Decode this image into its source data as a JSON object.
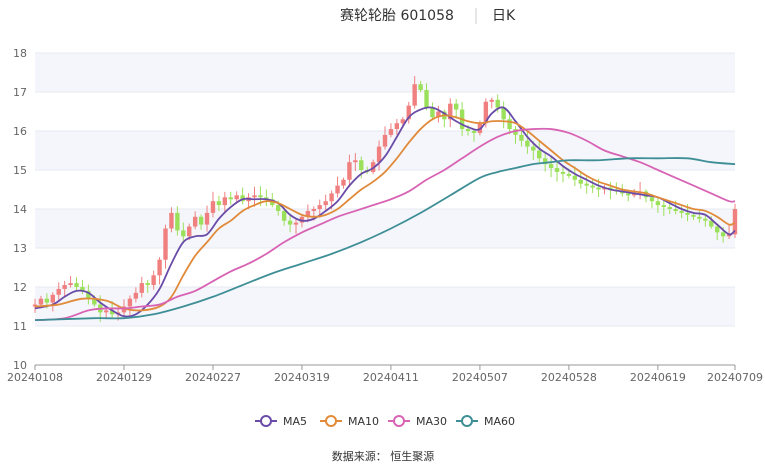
{
  "header": {
    "title": "赛轮轮胎 601058",
    "period": "日K"
  },
  "footer": {
    "source": "数据来源：  恒生聚源"
  },
  "chart_data": {
    "type": "candlestick",
    "xlabel": "",
    "ylabel": "",
    "ylim": [
      10,
      18
    ],
    "yticks": [
      10,
      11,
      12,
      13,
      14,
      15,
      16,
      17,
      18
    ],
    "grid": true,
    "legend_position": "bottom",
    "colors": {
      "up": "#f08080",
      "down": "#9be05a",
      "MA5": "#6a4ca8",
      "MA10": "#e08a3a",
      "MA30": "#d863b4",
      "MA60": "#3e8e96"
    },
    "xticks": [
      {
        "i": 0,
        "label": "20240108"
      },
      {
        "i": 15,
        "label": "20240129"
      },
      {
        "i": 30,
        "label": "20240227"
      },
      {
        "i": 45,
        "label": "20240319"
      },
      {
        "i": 60,
        "label": "20240411"
      },
      {
        "i": 75,
        "label": "20240507"
      },
      {
        "i": 90,
        "label": "20240528"
      },
      {
        "i": 105,
        "label": "20240619"
      },
      {
        "i": 118,
        "label": "20240709"
      }
    ],
    "close_path": [
      [
        0,
        11.55
      ],
      [
        1,
        11.7
      ],
      [
        2,
        11.6
      ],
      [
        3,
        11.8
      ],
      [
        4,
        11.95
      ],
      [
        5,
        12.05
      ],
      [
        6,
        12.1
      ],
      [
        7,
        12.0
      ],
      [
        8,
        11.9
      ],
      [
        9,
        11.7
      ],
      [
        10,
        11.55
      ],
      [
        11,
        11.35
      ],
      [
        12,
        11.4
      ],
      [
        13,
        11.3
      ],
      [
        14,
        11.35
      ],
      [
        15,
        11.5
      ],
      [
        16,
        11.7
      ],
      [
        17,
        11.85
      ],
      [
        18,
        12.1
      ],
      [
        19,
        12.05
      ],
      [
        20,
        12.3
      ],
      [
        21,
        12.7
      ],
      [
        22,
        13.5
      ],
      [
        23,
        13.9
      ],
      [
        24,
        13.45
      ],
      [
        25,
        13.3
      ],
      [
        26,
        13.55
      ],
      [
        27,
        13.8
      ],
      [
        28,
        13.6
      ],
      [
        29,
        13.9
      ],
      [
        30,
        14.2
      ],
      [
        31,
        14.1
      ],
      [
        32,
        14.3
      ],
      [
        33,
        14.25
      ],
      [
        34,
        14.35
      ],
      [
        35,
        14.2
      ],
      [
        36,
        14.3
      ],
      [
        37,
        14.35
      ],
      [
        38,
        14.3
      ],
      [
        39,
        14.25
      ],
      [
        40,
        14.1
      ],
      [
        41,
        13.95
      ],
      [
        42,
        13.7
      ],
      [
        43,
        13.6
      ],
      [
        44,
        13.65
      ],
      [
        45,
        13.8
      ],
      [
        46,
        13.95
      ],
      [
        47,
        14.0
      ],
      [
        48,
        14.1
      ],
      [
        49,
        14.2
      ],
      [
        50,
        14.4
      ],
      [
        51,
        14.6
      ],
      [
        52,
        14.75
      ],
      [
        53,
        15.2
      ],
      [
        54,
        15.25
      ],
      [
        55,
        15.0
      ],
      [
        56,
        14.95
      ],
      [
        57,
        15.2
      ],
      [
        58,
        15.6
      ],
      [
        59,
        15.9
      ],
      [
        60,
        16.05
      ],
      [
        61,
        16.2
      ],
      [
        62,
        16.3
      ],
      [
        63,
        16.65
      ],
      [
        64,
        17.2
      ],
      [
        65,
        17.05
      ],
      [
        66,
        16.6
      ],
      [
        67,
        16.35
      ],
      [
        68,
        16.5
      ],
      [
        69,
        16.3
      ],
      [
        70,
        16.7
      ],
      [
        71,
        16.55
      ],
      [
        72,
        16.05
      ],
      [
        73,
        16.0
      ],
      [
        74,
        15.95
      ],
      [
        75,
        16.2
      ],
      [
        76,
        16.75
      ],
      [
        77,
        16.8
      ],
      [
        78,
        16.6
      ],
      [
        79,
        16.3
      ],
      [
        80,
        16.05
      ],
      [
        81,
        15.9
      ],
      [
        82,
        15.75
      ],
      [
        83,
        15.6
      ],
      [
        84,
        15.5
      ],
      [
        85,
        15.3
      ],
      [
        86,
        15.15
      ],
      [
        87,
        15.05
      ],
      [
        88,
        14.95
      ],
      [
        89,
        14.9
      ],
      [
        90,
        14.85
      ],
      [
        91,
        14.75
      ],
      [
        92,
        14.65
      ],
      [
        93,
        14.6
      ],
      [
        94,
        14.55
      ],
      [
        95,
        14.5
      ],
      [
        96,
        14.55
      ],
      [
        97,
        14.5
      ],
      [
        98,
        14.45
      ],
      [
        99,
        14.4
      ],
      [
        100,
        14.35
      ],
      [
        101,
        14.4
      ],
      [
        102,
        14.45
      ],
      [
        103,
        14.3
      ],
      [
        104,
        14.2
      ],
      [
        105,
        14.1
      ],
      [
        106,
        14.05
      ],
      [
        107,
        14.0
      ],
      [
        108,
        13.95
      ],
      [
        109,
        13.9
      ],
      [
        110,
        13.85
      ],
      [
        111,
        13.8
      ],
      [
        112,
        13.75
      ],
      [
        113,
        13.7
      ],
      [
        114,
        13.55
      ],
      [
        115,
        13.4
      ],
      [
        116,
        13.3
      ],
      [
        117,
        13.35
      ],
      [
        118,
        14.0
      ]
    ],
    "series": [
      {
        "name": "MA5",
        "points": [
          [
            0,
            11.45
          ],
          [
            3,
            11.55
          ],
          [
            5,
            11.75
          ],
          [
            7,
            11.9
          ],
          [
            9,
            11.85
          ],
          [
            11,
            11.6
          ],
          [
            13,
            11.4
          ],
          [
            15,
            11.25
          ],
          [
            17,
            11.3
          ],
          [
            19,
            11.55
          ],
          [
            21,
            11.95
          ],
          [
            23,
            12.6
          ],
          [
            25,
            13.15
          ],
          [
            27,
            13.3
          ],
          [
            29,
            13.35
          ],
          [
            31,
            13.75
          ],
          [
            33,
            14.05
          ],
          [
            35,
            14.25
          ],
          [
            37,
            14.25
          ],
          [
            39,
            14.25
          ],
          [
            41,
            14.15
          ],
          [
            43,
            13.85
          ],
          [
            45,
            13.7
          ],
          [
            47,
            13.75
          ],
          [
            49,
            13.95
          ],
          [
            51,
            14.2
          ],
          [
            53,
            14.6
          ],
          [
            55,
            14.9
          ],
          [
            57,
            15.05
          ],
          [
            59,
            15.35
          ],
          [
            61,
            15.85
          ],
          [
            63,
            16.35
          ],
          [
            65,
            16.55
          ],
          [
            67,
            16.6
          ],
          [
            69,
            16.45
          ],
          [
            71,
            16.25
          ],
          [
            73,
            16.1
          ],
          [
            75,
            16.05
          ],
          [
            77,
            16.45
          ],
          [
            79,
            16.6
          ],
          [
            81,
            16.25
          ],
          [
            83,
            15.85
          ],
          [
            85,
            15.55
          ],
          [
            87,
            15.35
          ],
          [
            89,
            15.1
          ],
          [
            91,
            14.9
          ],
          [
            93,
            14.75
          ],
          [
            95,
            14.6
          ],
          [
            97,
            14.5
          ],
          [
            99,
            14.45
          ],
          [
            101,
            14.4
          ],
          [
            103,
            14.35
          ],
          [
            105,
            14.3
          ],
          [
            107,
            14.15
          ],
          [
            109,
            14.0
          ],
          [
            111,
            13.9
          ],
          [
            113,
            13.85
          ],
          [
            115,
            13.6
          ],
          [
            117,
            13.35
          ],
          [
            118,
            13.45
          ]
        ]
      },
      {
        "name": "MA10",
        "points": [
          [
            0,
            11.5
          ],
          [
            4,
            11.55
          ],
          [
            8,
            11.7
          ],
          [
            12,
            11.65
          ],
          [
            15,
            11.45
          ],
          [
            18,
            11.4
          ],
          [
            21,
            11.5
          ],
          [
            23,
            11.75
          ],
          [
            25,
            12.3
          ],
          [
            27,
            12.8
          ],
          [
            29,
            13.15
          ],
          [
            31,
            13.5
          ],
          [
            33,
            13.7
          ],
          [
            35,
            13.95
          ],
          [
            37,
            14.1
          ],
          [
            39,
            14.2
          ],
          [
            41,
            14.15
          ],
          [
            43,
            14.0
          ],
          [
            45,
            13.85
          ],
          [
            47,
            13.8
          ],
          [
            49,
            13.85
          ],
          [
            51,
            14.0
          ],
          [
            53,
            14.25
          ],
          [
            55,
            14.5
          ],
          [
            57,
            14.7
          ],
          [
            59,
            14.95
          ],
          [
            61,
            15.3
          ],
          [
            63,
            15.7
          ],
          [
            65,
            16.05
          ],
          [
            67,
            16.3
          ],
          [
            69,
            16.4
          ],
          [
            71,
            16.35
          ],
          [
            73,
            16.25
          ],
          [
            75,
            16.2
          ],
          [
            77,
            16.25
          ],
          [
            79,
            16.25
          ],
          [
            81,
            16.2
          ],
          [
            83,
            16.0
          ],
          [
            85,
            15.75
          ],
          [
            87,
            15.5
          ],
          [
            89,
            15.25
          ],
          [
            91,
            15.05
          ],
          [
            93,
            14.85
          ],
          [
            95,
            14.7
          ],
          [
            97,
            14.6
          ],
          [
            99,
            14.5
          ],
          [
            101,
            14.45
          ],
          [
            103,
            14.4
          ],
          [
            105,
            14.3
          ],
          [
            107,
            14.2
          ],
          [
            109,
            14.1
          ],
          [
            111,
            14.0
          ],
          [
            113,
            13.95
          ],
          [
            115,
            13.8
          ],
          [
            117,
            13.6
          ],
          [
            118,
            13.65
          ]
        ]
      },
      {
        "name": "MA30",
        "points": [
          [
            0,
            11.15
          ],
          [
            5,
            11.2
          ],
          [
            9,
            11.4
          ],
          [
            12,
            11.45
          ],
          [
            15,
            11.45
          ],
          [
            18,
            11.5
          ],
          [
            21,
            11.55
          ],
          [
            24,
            11.75
          ],
          [
            27,
            11.9
          ],
          [
            30,
            12.15
          ],
          [
            33,
            12.4
          ],
          [
            36,
            12.6
          ],
          [
            39,
            12.85
          ],
          [
            42,
            13.15
          ],
          [
            45,
            13.4
          ],
          [
            48,
            13.6
          ],
          [
            51,
            13.8
          ],
          [
            54,
            13.95
          ],
          [
            57,
            14.1
          ],
          [
            60,
            14.25
          ],
          [
            63,
            14.45
          ],
          [
            66,
            14.75
          ],
          [
            69,
            15.0
          ],
          [
            72,
            15.3
          ],
          [
            75,
            15.6
          ],
          [
            78,
            15.85
          ],
          [
            81,
            16.0
          ],
          [
            84,
            16.05
          ],
          [
            87,
            16.05
          ],
          [
            90,
            15.95
          ],
          [
            93,
            15.75
          ],
          [
            96,
            15.5
          ],
          [
            99,
            15.35
          ],
          [
            102,
            15.2
          ],
          [
            105,
            15.0
          ],
          [
            108,
            14.8
          ],
          [
            111,
            14.6
          ],
          [
            114,
            14.4
          ],
          [
            117,
            14.2
          ],
          [
            118,
            14.2
          ]
        ]
      },
      {
        "name": "MA60",
        "points": [
          [
            0,
            11.15
          ],
          [
            10,
            11.2
          ],
          [
            15,
            11.2
          ],
          [
            20,
            11.3
          ],
          [
            25,
            11.5
          ],
          [
            30,
            11.75
          ],
          [
            35,
            12.05
          ],
          [
            40,
            12.35
          ],
          [
            45,
            12.6
          ],
          [
            50,
            12.85
          ],
          [
            55,
            13.15
          ],
          [
            60,
            13.5
          ],
          [
            65,
            13.9
          ],
          [
            70,
            14.35
          ],
          [
            75,
            14.8
          ],
          [
            78,
            14.95
          ],
          [
            81,
            15.05
          ],
          [
            84,
            15.15
          ],
          [
            87,
            15.2
          ],
          [
            90,
            15.25
          ],
          [
            95,
            15.25
          ],
          [
            100,
            15.3
          ],
          [
            105,
            15.3
          ],
          [
            110,
            15.3
          ],
          [
            114,
            15.2
          ],
          [
            118,
            15.15
          ]
        ]
      }
    ]
  }
}
